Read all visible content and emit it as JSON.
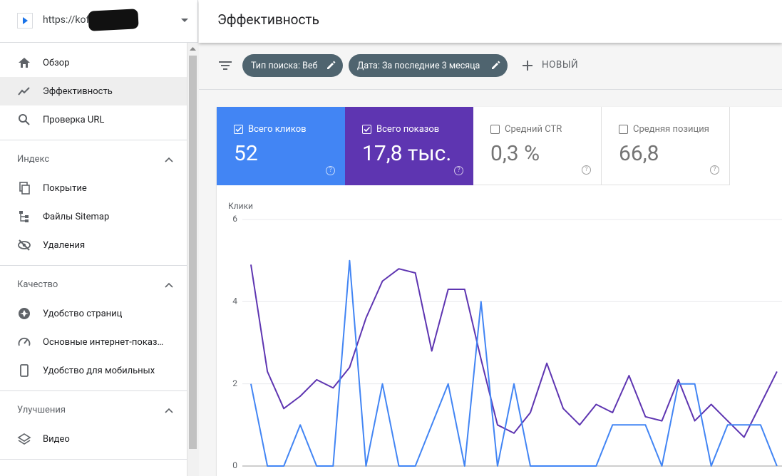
{
  "site": {
    "url": "https://kofe"
  },
  "nav": {
    "items": [
      "Обзор",
      "Эффективность",
      "Проверка URL"
    ],
    "sections": [
      {
        "title": "Индекс",
        "items": [
          "Покрытие",
          "Файлы Sitemap",
          "Удаления"
        ]
      },
      {
        "title": "Качество",
        "items": [
          "Удобство страниц",
          "Основные интернет-показ…",
          "Удобство для мобильных"
        ]
      },
      {
        "title": "Улучшения",
        "items": [
          "Видео"
        ]
      }
    ]
  },
  "header": {
    "title": "Эффективность"
  },
  "filters": {
    "chips": [
      "Тип поиска: Веб",
      "Дата: За последние 3 месяца"
    ],
    "new": "НОВЫЙ"
  },
  "other_metrics": [
    {
      "name": "Средний CTR",
      "total": "0,3 %"
    },
    {
      "name": "Средняя позиция",
      "total": "66,8"
    }
  ],
  "chart_data": {
    "type": "line",
    "ylabel": "Клики",
    "ylim": [
      0,
      6
    ],
    "yticks": [
      0,
      2,
      4,
      6
    ],
    "grid": true,
    "series": [
      {
        "name": "Всего кликов",
        "total": "52",
        "color": "#4285f4",
        "values": [
          2,
          0,
          0,
          1,
          0,
          0,
          5,
          0,
          2,
          0,
          0,
          1,
          2,
          0,
          4,
          0,
          2,
          0,
          0,
          0,
          0,
          0,
          1,
          1,
          1,
          0,
          2,
          2,
          0,
          1,
          1,
          1,
          0
        ]
      },
      {
        "name": "Всего показов",
        "total": "17,8 тыс.",
        "color": "#5e35b1",
        "values": [
          4.9,
          2.3,
          1.4,
          1.7,
          2.1,
          1.9,
          2.4,
          3.6,
          4.5,
          4.8,
          4.7,
          2.8,
          4.3,
          4.3,
          2.6,
          1.0,
          0.8,
          1.3,
          2.5,
          1.4,
          1.0,
          1.5,
          1.3,
          2.2,
          1.2,
          1.1,
          2.1,
          1.1,
          1.5,
          1.1,
          0.7,
          1.5,
          2.3
        ]
      }
    ]
  }
}
